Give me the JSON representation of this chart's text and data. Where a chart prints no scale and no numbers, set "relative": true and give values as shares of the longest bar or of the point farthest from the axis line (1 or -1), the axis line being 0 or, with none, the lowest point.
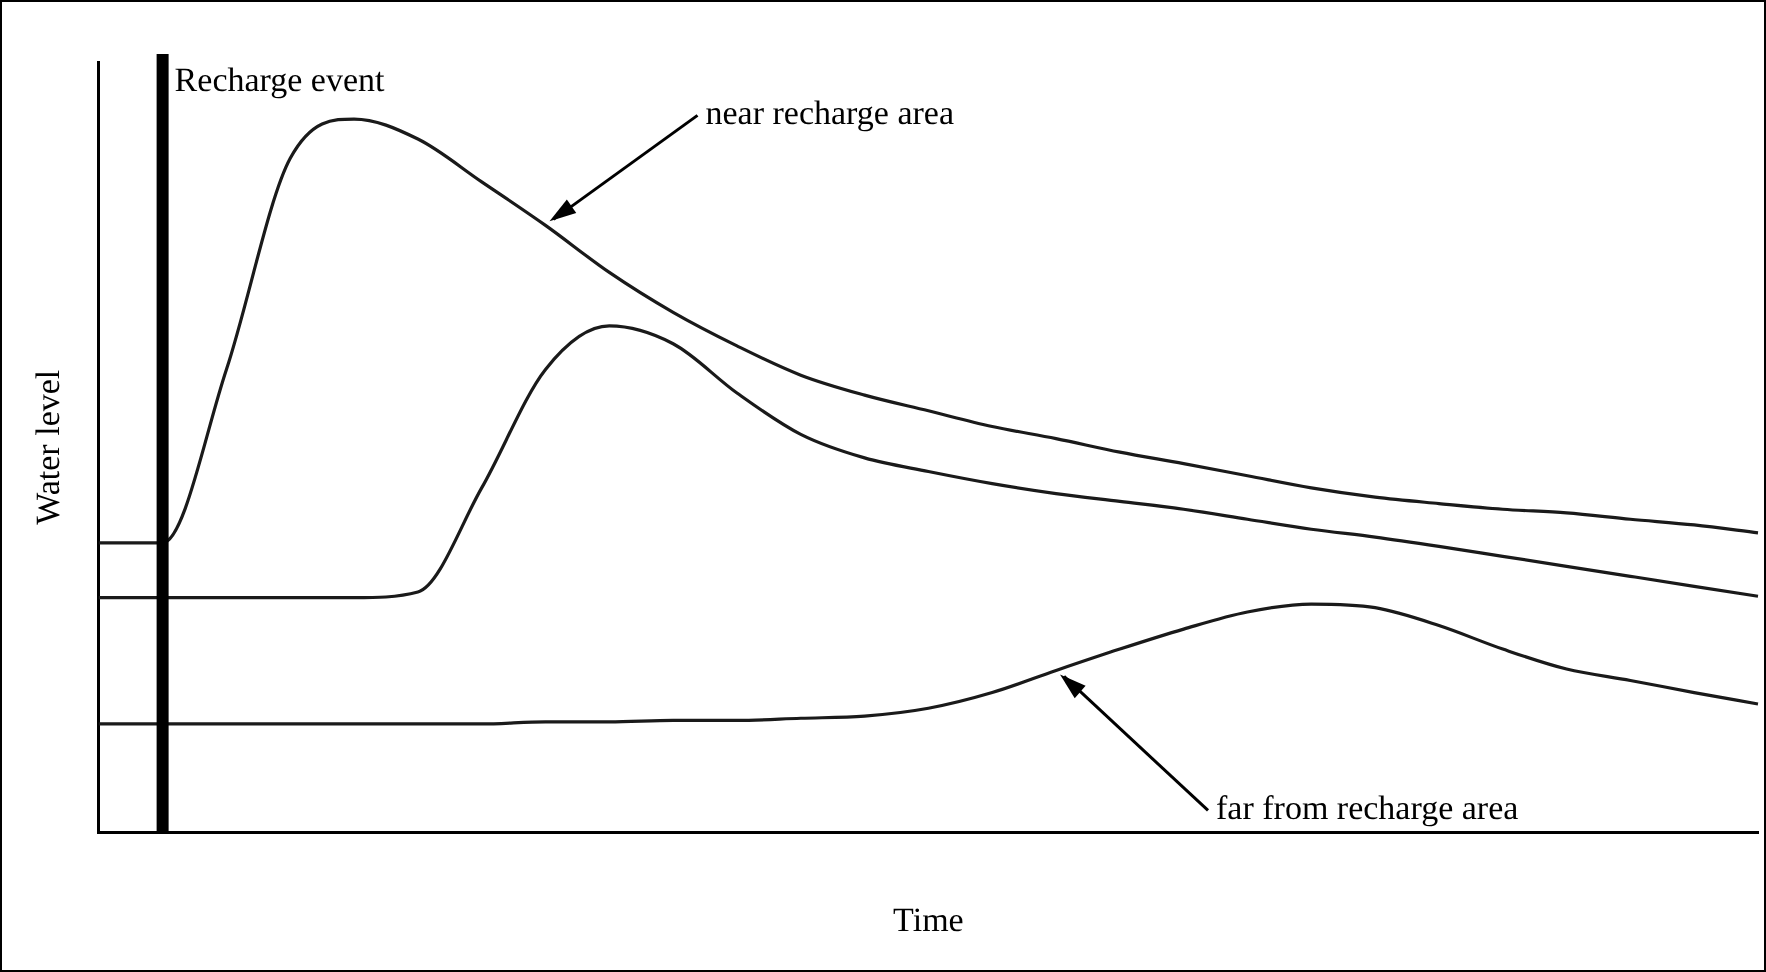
{
  "chart_data": {
    "type": "line",
    "relative": true,
    "xlabel": "Time",
    "ylabel": "Water level",
    "grid": false,
    "legend": false,
    "marker": "none",
    "line_style": "solid",
    "categories": [
      null,
      null,
      null,
      null,
      null,
      null,
      null,
      null,
      null,
      null,
      null,
      null,
      null,
      null,
      null,
      null,
      null,
      null,
      null,
      null,
      null,
      null,
      null,
      null,
      null,
      null,
      null
    ],
    "series": [
      {
        "color": "#1a1a1a",
        "values": [
          0.406,
          0.406,
          0.649,
          0.945,
          1,
          0.972,
          0.912,
          0.851,
          0.785,
          0.729,
          0.682,
          0.641,
          0.613,
          0.591,
          0.569,
          0.552,
          0.533,
          0.517,
          0.5,
          0.483,
          0.47,
          0.461,
          0.453,
          0.448,
          0.439,
          0.431,
          0.42
        ]
      },
      {
        "color": "#1a1a1a",
        "values": [
          0.329,
          0.329,
          0.329,
          0.329,
          0.329,
          0.337,
          0.483,
          0.649,
          0.71,
          0.685,
          0.616,
          0.558,
          0.525,
          0.506,
          0.489,
          0.475,
          0.464,
          0.453,
          0.439,
          0.425,
          0.414,
          0.401,
          0.387,
          0.373,
          0.359,
          0.345,
          0.331
        ]
      },
      {
        "color": "#1a1a1a",
        "values": [
          0.152,
          0.152,
          0.152,
          0.152,
          0.152,
          0.152,
          0.152,
          0.155,
          0.155,
          0.157,
          0.157,
          0.16,
          0.163,
          0.174,
          0.196,
          0.227,
          0.257,
          0.285,
          0.309,
          0.32,
          0.315,
          0.29,
          0.257,
          0.229,
          0.213,
          0.196,
          0.18
        ]
      }
    ],
    "annotations": [
      "Recharge event",
      "near recharge area",
      "far from recharge area"
    ]
  }
}
